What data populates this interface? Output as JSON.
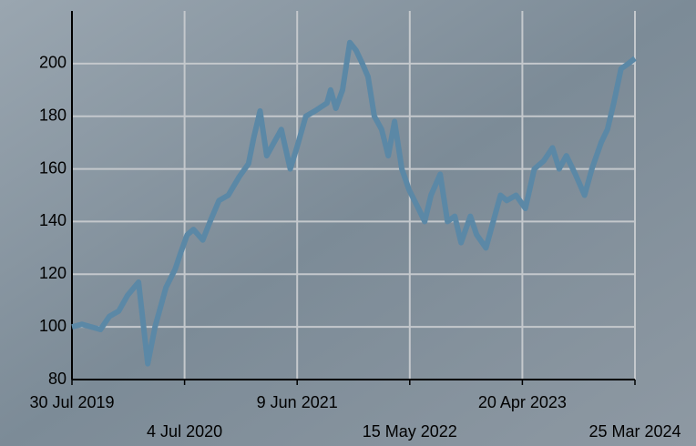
{
  "chart_data": {
    "type": "line",
    "x": [
      "2019-07-30",
      "2019-08-29",
      "2019-09-26",
      "2019-10-24",
      "2019-11-20",
      "2019-12-18",
      "2020-01-14",
      "2020-02-16",
      "2020-03-15",
      "2020-04-06",
      "2020-05-09",
      "2020-06-06",
      "2020-06-22",
      "2020-07-12",
      "2020-07-31",
      "2020-08-28",
      "2020-09-19",
      "2020-10-16",
      "2020-11-13",
      "2020-12-16",
      "2021-01-13",
      "2021-01-29",
      "2021-02-17",
      "2021-03-09",
      "2021-03-31",
      "2021-04-22",
      "2021-05-19",
      "2021-06-08",
      "2021-07-05",
      "2021-08-02",
      "2021-09-07",
      "2021-09-18",
      "2021-10-04",
      "2021-10-24",
      "2021-11-15",
      "2021-12-04",
      "2021-12-23",
      "2022-01-09",
      "2022-01-28",
      "2022-02-19",
      "2022-03-11",
      "2022-03-30",
      "2022-04-21",
      "2022-05-13",
      "2022-06-10",
      "2022-06-29",
      "2022-07-18",
      "2022-08-15",
      "2022-09-06",
      "2022-09-28",
      "2022-10-17",
      "2022-11-14",
      "2022-12-03",
      "2022-12-31",
      "2023-01-22",
      "2023-02-13",
      "2023-03-04",
      "2023-04-01",
      "2023-04-29",
      "2023-05-26",
      "2023-06-23",
      "2023-07-20",
      "2023-08-09",
      "2023-08-31",
      "2023-09-27",
      "2023-10-25",
      "2023-11-16",
      "2023-12-14",
      "2024-01-02",
      "2024-01-21",
      "2024-02-12",
      "2024-03-05",
      "2024-03-25"
    ],
    "series": [
      {
        "color": "#5b88a6",
        "values": [
          100,
          101,
          100,
          99,
          104,
          106,
          112,
          117,
          86,
          100,
          115,
          122,
          128,
          135,
          137,
          133,
          140,
          148,
          150,
          157,
          162,
          172,
          182,
          165,
          170,
          175,
          160,
          168,
          180,
          182,
          185,
          190,
          183,
          190,
          208,
          205,
          200,
          195,
          180,
          175,
          165,
          178,
          160,
          152,
          145,
          140,
          150,
          158,
          140,
          142,
          132,
          142,
          135,
          130,
          140,
          150,
          148,
          150,
          145,
          160,
          163,
          168,
          160,
          165,
          158,
          150,
          160,
          170,
          175,
          185,
          198,
          200,
          202
        ]
      }
    ],
    "xlim": [
      "2019-07-30",
      "2024-03-25"
    ],
    "xticks": [
      {
        "value": "2019-07-30",
        "label": "30 Jul 2019"
      },
      {
        "value": "2020-07-04",
        "label": "4 Jul 2020"
      },
      {
        "value": "2021-06-09",
        "label": "9 Jun 2021"
      },
      {
        "value": "2022-05-15",
        "label": "15 May 2022"
      },
      {
        "value": "2023-04-20",
        "label": "20 Apr 2023"
      },
      {
        "value": "2024-03-25",
        "label": "25 Mar 2024"
      }
    ],
    "ylim": [
      80,
      220
    ],
    "yticks": [
      80,
      100,
      120,
      140,
      160,
      180,
      200
    ],
    "grid": true
  }
}
